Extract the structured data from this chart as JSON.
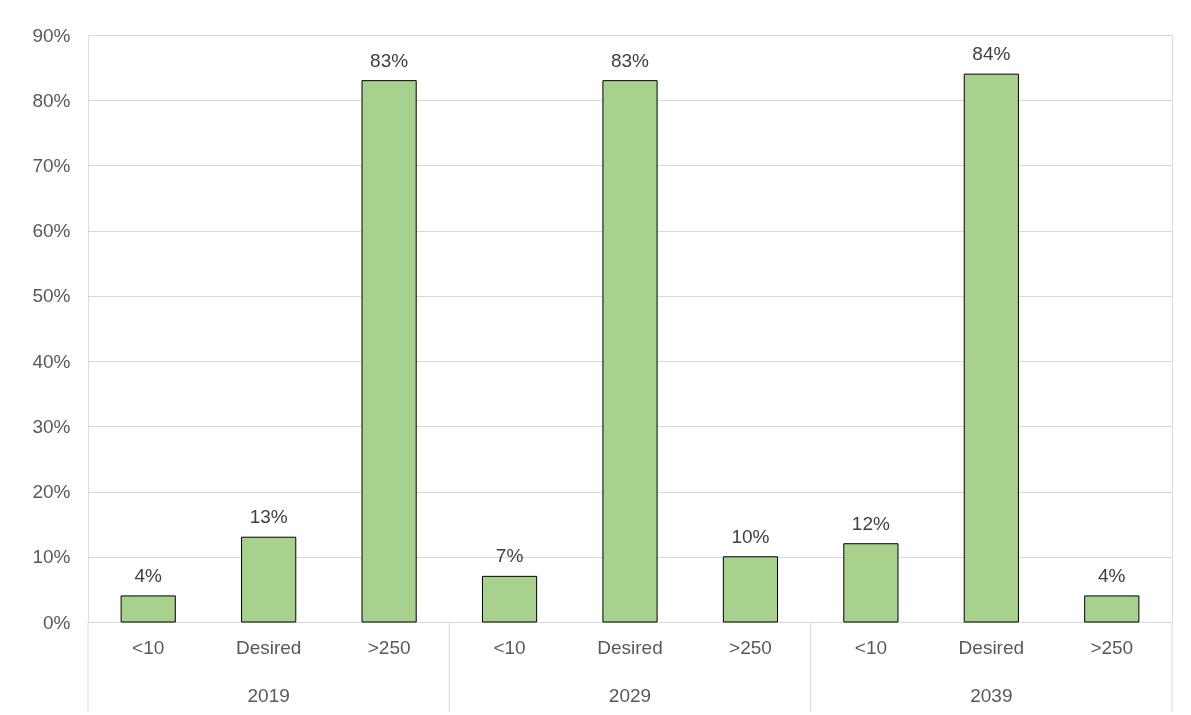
{
  "chart_data": {
    "type": "bar",
    "categories": [
      "<10",
      "Desired",
      ">250",
      "<10",
      "Desired",
      ">250",
      "<10",
      "Desired",
      ">250"
    ],
    "values": [
      4,
      13,
      83,
      7,
      83,
      10,
      12,
      84,
      4
    ],
    "color": "#a9d18e",
    "value_labels": [
      "4%",
      "13%",
      "83%",
      "7%",
      "83%",
      "10%",
      "12%",
      "84%",
      "4%"
    ],
    "annotations": [
      "2019",
      "2029",
      "2039"
    ],
    "ylim": [
      0,
      90
    ],
    "yticks": [
      {
        "value": 0,
        "label": "0%"
      },
      {
        "value": 10,
        "label": "10%"
      },
      {
        "value": 20,
        "label": "20%"
      },
      {
        "value": 30,
        "label": "30%"
      },
      {
        "value": 40,
        "label": "40%"
      },
      {
        "value": 50,
        "label": "50%"
      },
      {
        "value": 60,
        "label": "60%"
      },
      {
        "value": 70,
        "label": "70%"
      },
      {
        "value": 80,
        "label": "80%"
      },
      {
        "value": 90,
        "label": "90%"
      }
    ],
    "grid": "y"
  }
}
